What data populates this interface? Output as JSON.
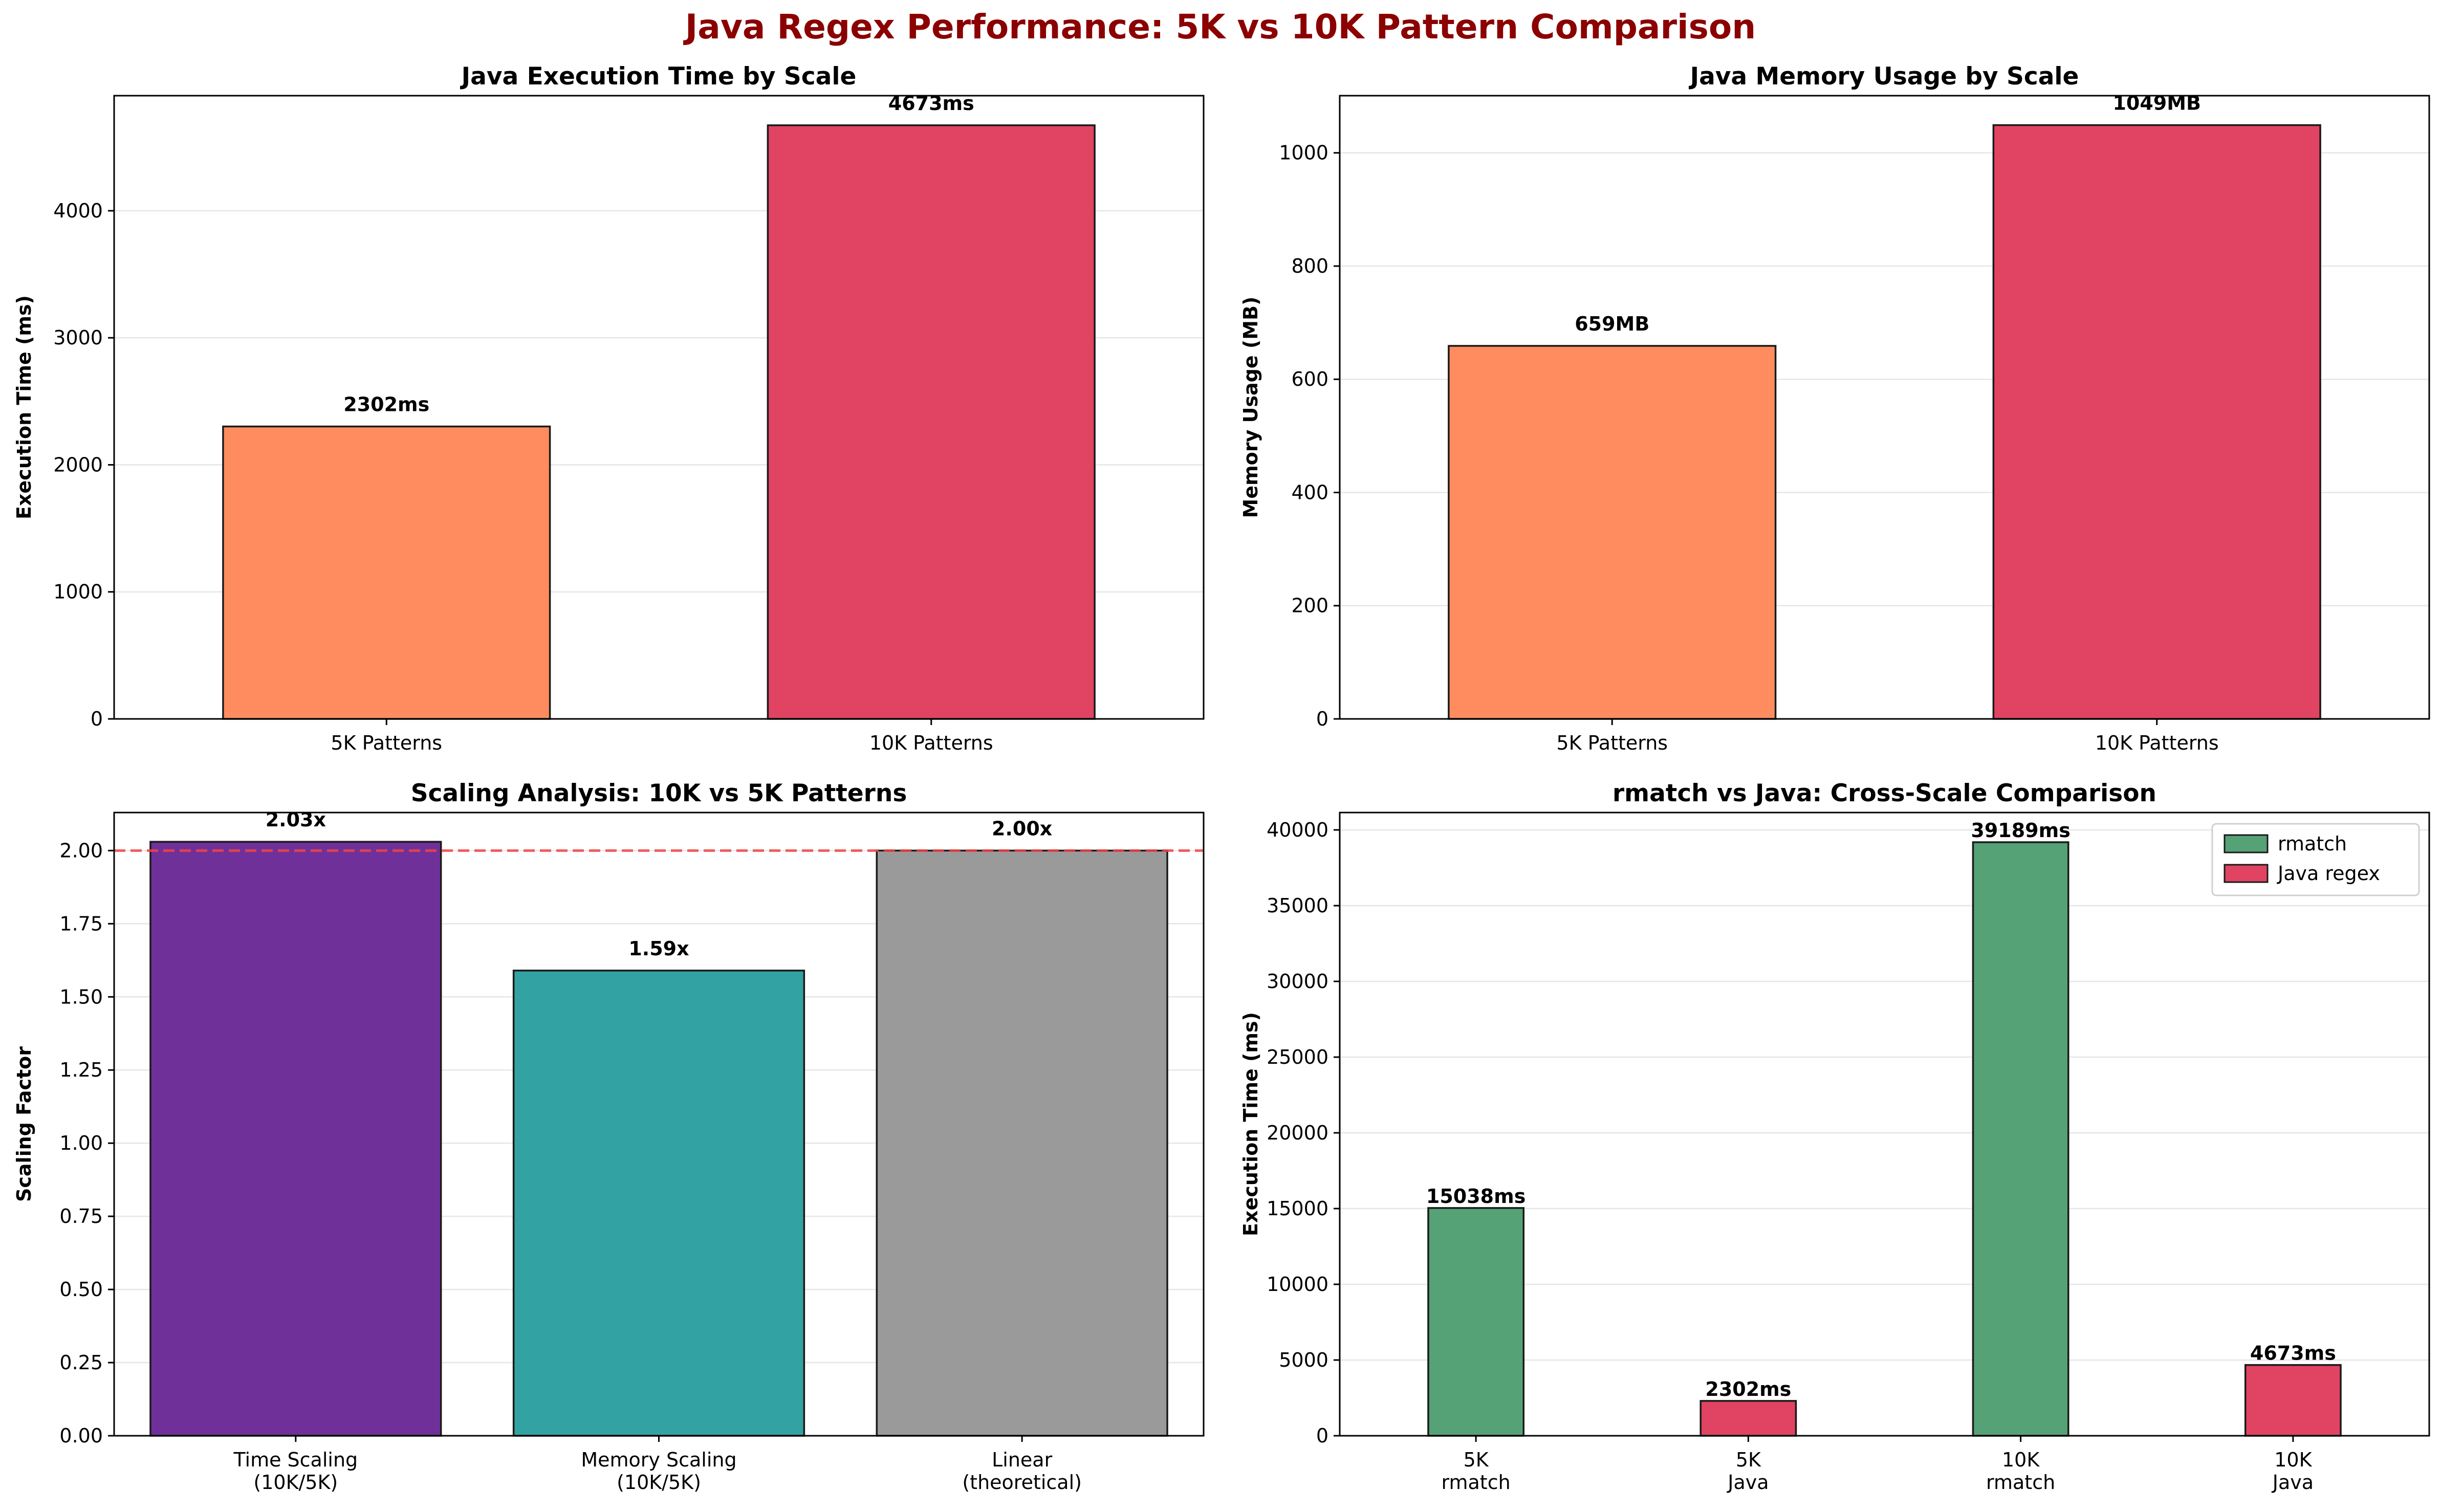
{
  "suptitle": "Java Regex Performance: 5K vs 10K Pattern Comparison",
  "chart_data": [
    {
      "type": "bar",
      "title": "Java Execution Time by Scale",
      "ylabel": "Execution Time (ms)",
      "categories": [
        [
          "5K Patterns"
        ],
        [
          "10K Patterns"
        ]
      ],
      "values": [
        2302,
        4673
      ],
      "value_labels": [
        "2302ms",
        "4673ms"
      ],
      "colors": [
        "#ff8c5f",
        "#e04462"
      ],
      "ylim": [
        0,
        4906
      ],
      "yticks": [
        0,
        1000,
        2000,
        3000,
        4000
      ],
      "ytick_labels": [
        "0",
        "1000",
        "2000",
        "3000",
        "4000"
      ],
      "grid": true
    },
    {
      "type": "bar",
      "title": "Java Memory Usage by Scale",
      "ylabel": "Memory Usage (MB)",
      "categories": [
        [
          "5K Patterns"
        ],
        [
          "10K Patterns"
        ]
      ],
      "values": [
        659,
        1049
      ],
      "value_labels": [
        "659MB",
        "1049MB"
      ],
      "colors": [
        "#ff8c5f",
        "#e04462"
      ],
      "ylim": [
        0,
        1101
      ],
      "yticks": [
        0,
        200,
        400,
        600,
        800,
        1000
      ],
      "ytick_labels": [
        "0",
        "200",
        "400",
        "600",
        "800",
        "1000"
      ],
      "grid": true
    },
    {
      "type": "bar",
      "title": "Scaling Analysis: 10K vs 5K Patterns",
      "ylabel": "Scaling Factor",
      "categories": [
        [
          "Time Scaling",
          "(10K/5K)"
        ],
        [
          "Memory Scaling",
          "(10K/5K)"
        ],
        [
          "Linear",
          "(theoretical)"
        ]
      ],
      "values": [
        2.03,
        1.59,
        2.0
      ],
      "value_labels": [
        "2.03x",
        "1.59x",
        "2.00x"
      ],
      "colors": [
        "#70309a",
        "#32a2a2",
        "#9a9a9a"
      ],
      "reference_line": 2.0,
      "reference_color": "#f04545",
      "ylim": [
        0,
        2.13
      ],
      "yticks": [
        0,
        0.25,
        0.5,
        0.75,
        1.0,
        1.25,
        1.5,
        1.75,
        2.0
      ],
      "ytick_labels": [
        "0.00",
        "0.25",
        "0.50",
        "0.75",
        "1.00",
        "1.25",
        "1.50",
        "1.75",
        "2.00"
      ],
      "grid": true
    },
    {
      "type": "bar",
      "title": "rmatch vs Java: Cross-Scale Comparison",
      "ylabel": "Execution Time (ms)",
      "categories": [
        [
          "5K",
          "rmatch"
        ],
        [
          "5K",
          "Java"
        ],
        [
          "10K",
          "rmatch"
        ],
        [
          "10K",
          "Java"
        ]
      ],
      "values": [
        15038,
        2302,
        39189,
        4673
      ],
      "value_labels": [
        "15038ms",
        "2302ms",
        "39189ms",
        "4673ms"
      ],
      "colors": [
        "#55a276",
        "#e04462",
        "#55a276",
        "#e04462"
      ],
      "legend": [
        {
          "label": "rmatch",
          "color": "#55a276"
        },
        {
          "label": "Java regex",
          "color": "#e04462"
        }
      ],
      "legend_position": "top-right",
      "ylim": [
        0,
        41148
      ],
      "yticks": [
        0,
        5000,
        10000,
        15000,
        20000,
        25000,
        30000,
        35000,
        40000
      ],
      "ytick_labels": [
        "0",
        "5000",
        "10000",
        "15000",
        "20000",
        "25000",
        "30000",
        "35000",
        "40000"
      ],
      "grid": true
    }
  ]
}
